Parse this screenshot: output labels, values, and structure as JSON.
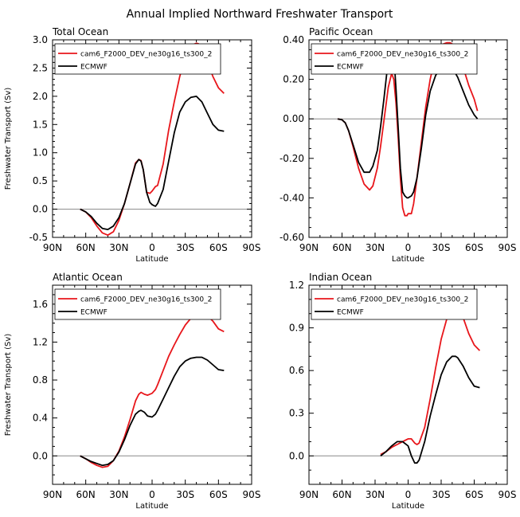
{
  "title": "Annual Implied Northward Freshwater Transport",
  "chart_data": [
    {
      "type": "line",
      "panel_title": "Total Ocean",
      "xlabel": "Latitude",
      "ylabel": "Freshwater Transport (Sv)",
      "xlim": [
        -90,
        90
      ],
      "x_ticks": [
        -90,
        -60,
        -30,
        0,
        30,
        60,
        90
      ],
      "x_tick_labels": [
        "90N",
        "60N",
        "30N",
        "0",
        "30S",
        "60S",
        "90S"
      ],
      "ylim": [
        -0.5,
        3.0
      ],
      "y_ticks": [
        -0.5,
        0.0,
        0.5,
        1.0,
        1.5,
        2.0,
        2.5,
        3.0
      ],
      "y_tick_labels": [
        "-0.5",
        "0.0",
        "0.5",
        "1.0",
        "1.5",
        "2.0",
        "2.5",
        "3.0"
      ],
      "y_minor_step": 0.1,
      "zero_line": true,
      "series": [
        {
          "name": "cam6_F2000_DEV_ne30g16_ts300_2",
          "color": "#e8161b",
          "x": [
            -65,
            -60,
            -55,
            -50,
            -45,
            -40,
            -35,
            -30,
            -25,
            -20,
            -15,
            -12,
            -10,
            -8,
            -5,
            -2,
            0,
            3,
            5,
            10,
            15,
            20,
            25,
            30,
            35,
            40,
            42,
            45,
            50,
            55,
            60,
            65
          ],
          "y": [
            0,
            -0.05,
            -0.15,
            -0.3,
            -0.42,
            -0.46,
            -0.4,
            -0.2,
            0.1,
            0.45,
            0.82,
            0.88,
            0.86,
            0.7,
            0.3,
            0.28,
            0.32,
            0.4,
            0.42,
            0.8,
            1.4,
            1.9,
            2.35,
            2.7,
            2.9,
            2.94,
            2.93,
            2.85,
            2.6,
            2.35,
            2.15,
            2.05
          ]
        },
        {
          "name": "ECMWF",
          "color": "#000000",
          "x": [
            -65,
            -60,
            -55,
            -50,
            -45,
            -40,
            -35,
            -30,
            -25,
            -20,
            -15,
            -12,
            -10,
            -8,
            -5,
            -2,
            0,
            3,
            5,
            10,
            15,
            20,
            25,
            30,
            35,
            40,
            45,
            50,
            55,
            60,
            65
          ],
          "y": [
            0,
            -0.05,
            -0.13,
            -0.25,
            -0.34,
            -0.36,
            -0.3,
            -0.15,
            0.1,
            0.45,
            0.8,
            0.88,
            0.85,
            0.7,
            0.3,
            0.12,
            0.08,
            0.05,
            0.1,
            0.35,
            0.85,
            1.35,
            1.72,
            1.9,
            1.98,
            2.0,
            1.9,
            1.7,
            1.5,
            1.4,
            1.38
          ]
        }
      ]
    },
    {
      "type": "line",
      "panel_title": "Pacific Ocean",
      "xlabel": "Latitude",
      "ylabel": "",
      "xlim": [
        -90,
        90
      ],
      "x_ticks": [
        -90,
        -60,
        -30,
        0,
        30,
        60,
        90
      ],
      "x_tick_labels": [
        "90N",
        "60N",
        "30N",
        "0",
        "30S",
        "60S",
        "90S"
      ],
      "ylim": [
        -0.6,
        0.4
      ],
      "y_ticks": [
        -0.6,
        -0.4,
        -0.2,
        0.0,
        0.2,
        0.4
      ],
      "y_tick_labels": [
        "-0.60",
        "-0.40",
        "-0.20",
        "0.00",
        "0.20",
        "0.40"
      ],
      "y_minor_step": 0.05,
      "zero_line": true,
      "series": [
        {
          "name": "cam6_F2000_DEV_ne30g16_ts300_2",
          "color": "#e8161b",
          "x": [
            -64,
            -60,
            -57,
            -54,
            -50,
            -45,
            -40,
            -35,
            -32,
            -28,
            -25,
            -22,
            -18,
            -15,
            -13,
            -11,
            -9,
            -7,
            -5,
            -3,
            -1,
            0,
            3,
            5,
            8,
            12,
            16,
            20,
            25,
            30,
            35,
            38,
            40,
            45,
            50,
            55,
            60,
            63
          ],
          "y": [
            0,
            -0.005,
            -0.02,
            -0.06,
            -0.14,
            -0.25,
            -0.33,
            -0.36,
            -0.34,
            -0.25,
            -0.14,
            -0.01,
            0.16,
            0.23,
            0.2,
            0.08,
            -0.1,
            -0.3,
            -0.45,
            -0.49,
            -0.49,
            -0.48,
            -0.48,
            -0.43,
            -0.3,
            -0.12,
            0.06,
            0.2,
            0.32,
            0.375,
            0.385,
            0.385,
            0.38,
            0.34,
            0.26,
            0.17,
            0.1,
            0.04
          ]
        },
        {
          "name": "ECMWF",
          "color": "#000000",
          "x": [
            -64,
            -60,
            -57,
            -54,
            -50,
            -45,
            -40,
            -35,
            -32,
            -28,
            -25,
            -22,
            -18,
            -15,
            -13,
            -11,
            -9,
            -7,
            -5,
            -3,
            -1,
            0,
            3,
            5,
            8,
            12,
            16,
            20,
            25,
            30,
            35,
            38,
            40,
            45,
            50,
            55,
            60,
            63
          ],
          "y": [
            0,
            -0.005,
            -0.02,
            -0.06,
            -0.13,
            -0.22,
            -0.27,
            -0.27,
            -0.24,
            -0.16,
            -0.04,
            0.1,
            0.3,
            0.37,
            0.33,
            0.15,
            -0.05,
            -0.25,
            -0.37,
            -0.39,
            -0.4,
            -0.4,
            -0.39,
            -0.37,
            -0.3,
            -0.15,
            0.02,
            0.14,
            0.22,
            0.26,
            0.27,
            0.27,
            0.26,
            0.21,
            0.14,
            0.07,
            0.02,
            0.0
          ]
        }
      ]
    },
    {
      "type": "line",
      "panel_title": "Atlantic Ocean",
      "xlabel": "Latitude",
      "ylabel": "Freshwater Transport (Sv)",
      "xlim": [
        -90,
        90
      ],
      "x_ticks": [
        -90,
        -60,
        -30,
        0,
        30,
        60,
        90
      ],
      "x_tick_labels": [
        "90N",
        "60N",
        "30N",
        "0",
        "30S",
        "60S",
        "90S"
      ],
      "ylim": [
        -0.3,
        1.8
      ],
      "y_ticks": [
        0.0,
        0.4,
        0.8,
        1.2,
        1.6
      ],
      "y_tick_labels": [
        "0.0",
        "0.4",
        "0.8",
        "1.2",
        "1.6"
      ],
      "y_minor_step": 0.1,
      "zero_line": true,
      "series": [
        {
          "name": "cam6_F2000_DEV_ne30g16_ts300_2",
          "color": "#e8161b",
          "x": [
            -65,
            -60,
            -55,
            -50,
            -45,
            -40,
            -35,
            -30,
            -25,
            -20,
            -15,
            -12,
            -10,
            -7,
            -4,
            0,
            3,
            5,
            10,
            15,
            20,
            25,
            30,
            35,
            40,
            45,
            50,
            55,
            60,
            65
          ],
          "y": [
            0,
            -0.03,
            -0.07,
            -0.1,
            -0.12,
            -0.11,
            -0.05,
            0.05,
            0.2,
            0.38,
            0.58,
            0.65,
            0.67,
            0.65,
            0.64,
            0.66,
            0.7,
            0.75,
            0.9,
            1.05,
            1.17,
            1.28,
            1.38,
            1.45,
            1.5,
            1.51,
            1.48,
            1.42,
            1.34,
            1.31
          ]
        },
        {
          "name": "ECMWF",
          "color": "#000000",
          "x": [
            -65,
            -60,
            -55,
            -50,
            -45,
            -40,
            -35,
            -30,
            -25,
            -20,
            -15,
            -12,
            -10,
            -7,
            -4,
            0,
            3,
            5,
            10,
            15,
            20,
            25,
            30,
            35,
            40,
            45,
            50,
            55,
            60,
            65
          ],
          "y": [
            0,
            -0.03,
            -0.06,
            -0.08,
            -0.1,
            -0.09,
            -0.05,
            0.04,
            0.17,
            0.32,
            0.44,
            0.47,
            0.48,
            0.46,
            0.42,
            0.41,
            0.44,
            0.48,
            0.6,
            0.72,
            0.84,
            0.94,
            1.0,
            1.03,
            1.04,
            1.04,
            1.01,
            0.96,
            0.91,
            0.9
          ]
        }
      ]
    },
    {
      "type": "line",
      "panel_title": "Indian Ocean",
      "xlabel": "Latitude",
      "ylabel": "",
      "xlim": [
        -90,
        90
      ],
      "x_ticks": [
        -90,
        -60,
        -30,
        0,
        30,
        60,
        90
      ],
      "x_tick_labels": [
        "90N",
        "60N",
        "30N",
        "0",
        "30S",
        "60S",
        "90S"
      ],
      "ylim": [
        -0.2,
        1.2
      ],
      "y_ticks": [
        0.0,
        0.3,
        0.6,
        0.9,
        1.2
      ],
      "y_tick_labels": [
        "0.0",
        "0.3",
        "0.6",
        "0.9",
        "1.2"
      ],
      "y_minor_step": 0.1,
      "zero_line": true,
      "series": [
        {
          "name": "cam6_F2000_DEV_ne30g16_ts300_2",
          "color": "#e8161b",
          "x": [
            -25,
            -20,
            -15,
            -10,
            -5,
            0,
            3,
            6,
            8,
            10,
            15,
            20,
            25,
            30,
            35,
            40,
            43,
            45,
            50,
            55,
            60,
            65
          ],
          "y": [
            0.01,
            0.03,
            0.06,
            0.08,
            0.1,
            0.12,
            0.12,
            0.09,
            0.08,
            0.09,
            0.2,
            0.4,
            0.62,
            0.82,
            0.96,
            1.04,
            1.05,
            1.04,
            0.97,
            0.86,
            0.78,
            0.74
          ]
        },
        {
          "name": "ECMWF",
          "color": "#000000",
          "x": [
            -25,
            -20,
            -15,
            -10,
            -5,
            0,
            3,
            6,
            8,
            10,
            15,
            20,
            25,
            30,
            35,
            40,
            43,
            45,
            50,
            55,
            60,
            65
          ],
          "y": [
            0.0,
            0.03,
            0.07,
            0.1,
            0.1,
            0.07,
            0.0,
            -0.05,
            -0.05,
            -0.03,
            0.1,
            0.28,
            0.43,
            0.57,
            0.66,
            0.7,
            0.7,
            0.69,
            0.63,
            0.55,
            0.49,
            0.48
          ]
        }
      ]
    }
  ]
}
